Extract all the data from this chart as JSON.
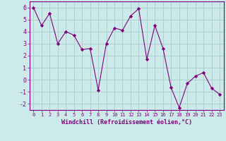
{
  "x": [
    0,
    1,
    2,
    3,
    4,
    5,
    6,
    7,
    8,
    9,
    10,
    11,
    12,
    13,
    14,
    15,
    16,
    17,
    18,
    19,
    20,
    21,
    22,
    23
  ],
  "y": [
    6.0,
    4.5,
    5.5,
    3.0,
    4.0,
    3.7,
    2.5,
    2.6,
    -0.85,
    3.0,
    4.3,
    4.1,
    5.3,
    5.9,
    1.7,
    4.5,
    2.6,
    -0.65,
    -2.3,
    -0.3,
    0.3,
    0.6,
    -0.7,
    -1.2
  ],
  "line_color": "#800080",
  "marker": "D",
  "marker_size": 2.2,
  "background_color": "#cceaea",
  "grid_color": "#aacccc",
  "xlabel": "Windchill (Refroidissement éolien,°C)",
  "xlim": [
    -0.5,
    23.5
  ],
  "ylim": [
    -2.5,
    6.5
  ],
  "yticks": [
    -2,
    -1,
    0,
    1,
    2,
    3,
    4,
    5,
    6
  ],
  "xticks": [
    0,
    1,
    2,
    3,
    4,
    5,
    6,
    7,
    8,
    9,
    10,
    11,
    12,
    13,
    14,
    15,
    16,
    17,
    18,
    19,
    20,
    21,
    22,
    23
  ],
  "tick_color": "#800080",
  "label_color": "#800080",
  "spine_color": "#800080",
  "xlabel_fontsize": 6.0,
  "ytick_fontsize": 6.0,
  "xtick_fontsize": 5.0
}
